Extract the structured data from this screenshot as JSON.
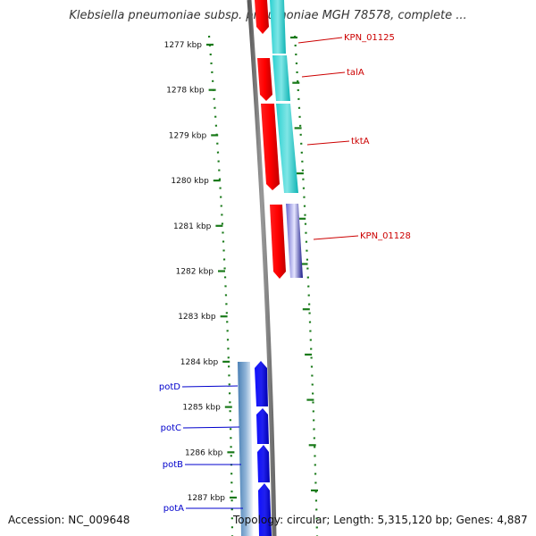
{
  "title": "Klebsiella pneumoniae subsp. pneumoniae MGH 78578, complete ...",
  "footer": {
    "accession": "Accession: NC_009648",
    "stats": "Topology: circular; Length: 5,315,120 bp; Genes: 4,887"
  },
  "colors": {
    "forward_gene": "#ff0000",
    "forward_cds": "#00c8c8",
    "reverse_gene": "#0000ee",
    "reverse_cds": "#4682b4",
    "backbone": "#808080",
    "tick": "#1a7a1a",
    "forward_label": "#cc0000",
    "reverse_label": "#0000cc"
  },
  "ruler": {
    "ticks": [
      "1277 kbp",
      "1278 kbp",
      "1279 kbp",
      "1280 kbp",
      "1281 kbp",
      "1282 kbp",
      "1283 kbp",
      "1284 kbp",
      "1285 kbp",
      "1286 kbp",
      "1287 kbp"
    ]
  },
  "genes": [
    {
      "label": "KPN_01125",
      "strand": "forward"
    },
    {
      "label": "talA",
      "strand": "forward"
    },
    {
      "label": "tktA",
      "strand": "forward"
    },
    {
      "label": "KPN_01128",
      "strand": "forward"
    },
    {
      "label": "potD",
      "strand": "reverse"
    },
    {
      "label": "potC",
      "strand": "reverse"
    },
    {
      "label": "potB",
      "strand": "reverse"
    },
    {
      "label": "potA",
      "strand": "reverse"
    }
  ]
}
